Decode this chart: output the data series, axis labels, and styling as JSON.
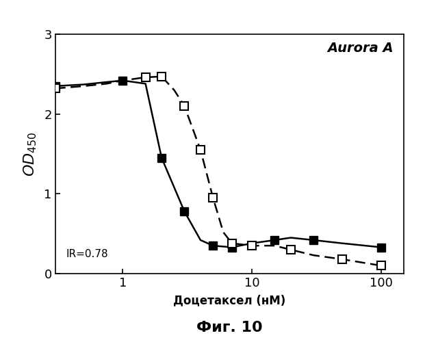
{
  "title_annotation": "Aurora A",
  "ir_label": "IR=0.78",
  "xlabel": "Доцетаксел (нМ)",
  "fig_caption": "Фиг. 10",
  "ylim": [
    0,
    3
  ],
  "xlim_log": [
    0.3,
    150
  ],
  "yticks": [
    0,
    1,
    2,
    3
  ],
  "xticks": [
    1,
    10,
    100
  ],
  "solid_x": [
    0.3,
    0.5,
    0.75,
    1.0,
    1.5,
    2.0,
    3.0,
    4.0,
    5.0,
    7.0,
    10.0,
    15.0,
    20.0,
    30.0,
    50.0,
    100.0
  ],
  "solid_y": [
    2.35,
    2.37,
    2.4,
    2.42,
    2.38,
    1.45,
    0.78,
    0.42,
    0.35,
    0.33,
    0.38,
    0.42,
    0.45,
    0.42,
    0.38,
    0.33
  ],
  "solid_marker_x": [
    0.3,
    1.0,
    2.0,
    3.0,
    5.0,
    7.0,
    15.0,
    30.0,
    100.0
  ],
  "solid_marker_y": [
    2.35,
    2.42,
    1.45,
    0.78,
    0.35,
    0.33,
    0.42,
    0.42,
    0.33
  ],
  "dashed_x": [
    0.3,
    0.5,
    0.75,
    1.0,
    1.5,
    2.0,
    2.5,
    3.0,
    4.0,
    5.0,
    6.0,
    7.0,
    10.0,
    15.0,
    20.0,
    30.0,
    50.0,
    100.0
  ],
  "dashed_y": [
    2.32,
    2.35,
    2.38,
    2.42,
    2.46,
    2.47,
    2.3,
    2.1,
    1.55,
    0.95,
    0.52,
    0.38,
    0.35,
    0.35,
    0.3,
    0.23,
    0.18,
    0.1
  ],
  "dashed_marker_x": [
    0.3,
    1.5,
    2.0,
    3.0,
    4.0,
    5.0,
    7.0,
    10.0,
    20.0,
    50.0,
    100.0
  ],
  "dashed_marker_y": [
    2.32,
    2.46,
    2.47,
    2.1,
    1.55,
    0.95,
    0.38,
    0.35,
    0.3,
    0.18,
    0.1
  ],
  "line_color": "black",
  "background_color": "white",
  "marker_size": 8,
  "linewidth": 1.8
}
